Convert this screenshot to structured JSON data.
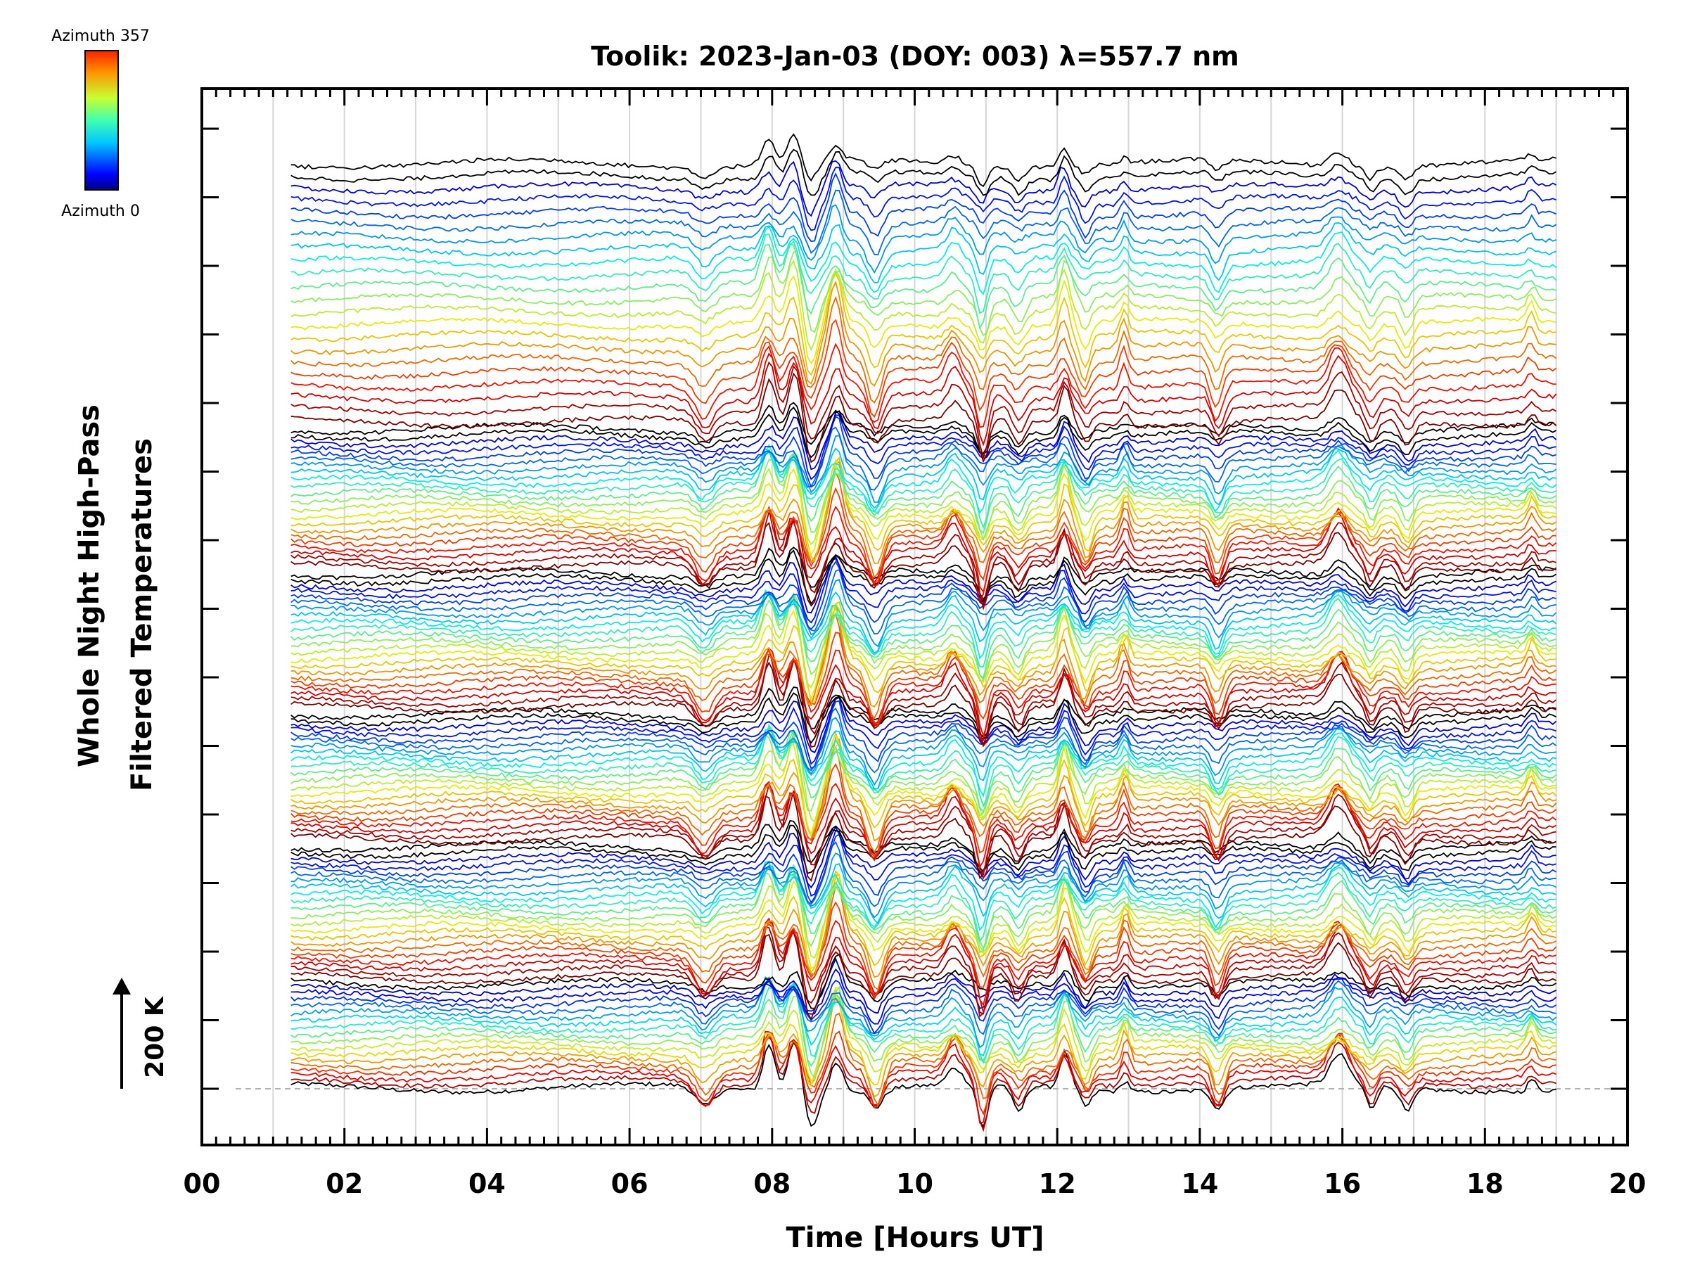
{
  "chart_data": {
    "type": "line",
    "title": "Toolik: 2023-Jan-03 (DOY: 003) λ=557.7 nm",
    "xlabel": "Time [Hours UT]",
    "ylabel_line1": "Whole Night High-Pass",
    "ylabel_line2": "Filtered Temperatures",
    "xlim": [
      0,
      20
    ],
    "x_tick_labels": [
      "00",
      "02",
      "04",
      "06",
      "08",
      "10",
      "12",
      "14",
      "16",
      "18",
      "20"
    ],
    "data_time_range": [
      1.25,
      19.0
    ],
    "scale_bar_label": "200 K",
    "colorbar": {
      "top_label": "Azimuth  357",
      "bottom_label": "Azimuth  0",
      "colormap": "jet"
    },
    "grid": "vertical",
    "series_count": 6,
    "series": [
      {
        "group": 1,
        "traces": 18
      },
      {
        "group": 2,
        "traces": 22
      },
      {
        "group": 3,
        "traces": 22
      },
      {
        "group": 4,
        "traces": 22
      },
      {
        "group": 5,
        "traces": 22
      },
      {
        "group": 6,
        "traces": 22
      }
    ],
    "features": {
      "wave_event_times": [
        7.05,
        7.95,
        8.3,
        8.55,
        8.9,
        9.45,
        10.55,
        10.95,
        11.45,
        12.1,
        12.4,
        12.95,
        14.25,
        15.95,
        16.4,
        16.9,
        18.65
      ]
    }
  },
  "colors": {
    "axis": "#000000",
    "grid": "#d6d6d6",
    "baseline": "#b0b0b0"
  }
}
